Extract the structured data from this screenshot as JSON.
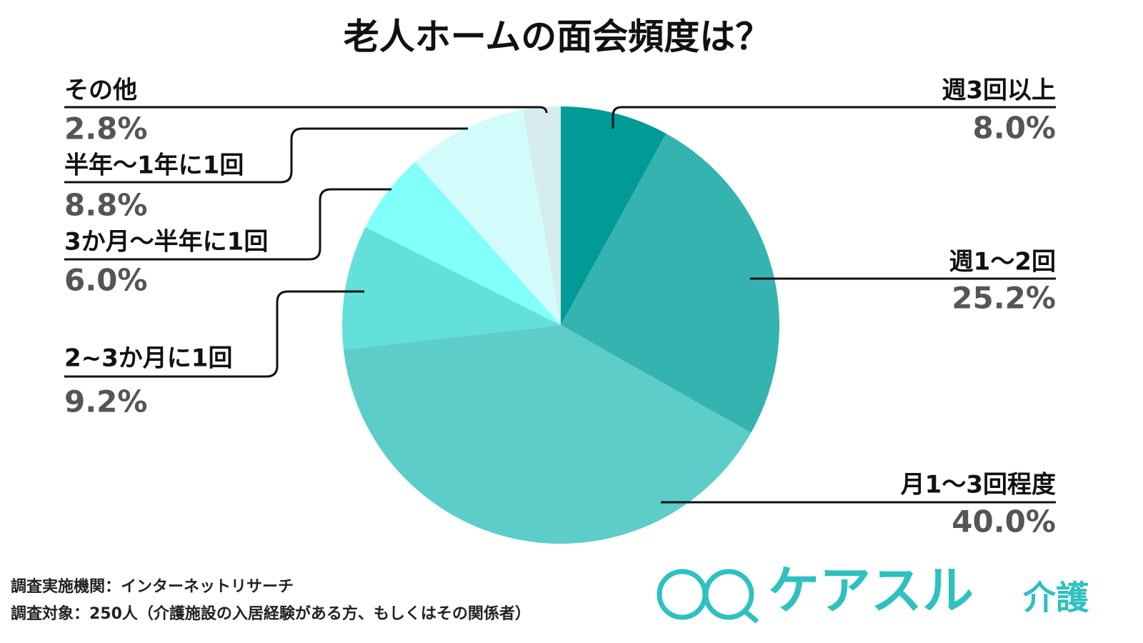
{
  "chart_data": {
    "type": "pie",
    "title": "老人ホームの面会頻度は？",
    "categories": [
      "週3回以上",
      "週1〜2回",
      "月1〜3回程度",
      "2~3か月に1回",
      "3か月〜半年に1回",
      "半年〜1年に1回",
      "その他"
    ],
    "values": [
      8.0,
      25.2,
      40.0,
      9.2,
      6.0,
      8.8,
      2.8
    ],
    "value_labels": [
      "8.0%",
      "25.2%",
      "40.0%",
      "9.2%",
      "6.0%",
      "8.8%",
      "2.8%"
    ],
    "colors": [
      "#009b96",
      "#35b3b0",
      "#5ccdc9",
      "#63e0dc",
      "#80fffb",
      "#d2fcfc",
      "#d6eced"
    ]
  },
  "source": [
    "調査実施機関：インターネットリサーチ",
    "調査対象：250人（介護施設の入居経験がある方、もしくはその関係者）"
  ],
  "logo": {
    "name": "ケアスル",
    "suffix": "介護"
  }
}
